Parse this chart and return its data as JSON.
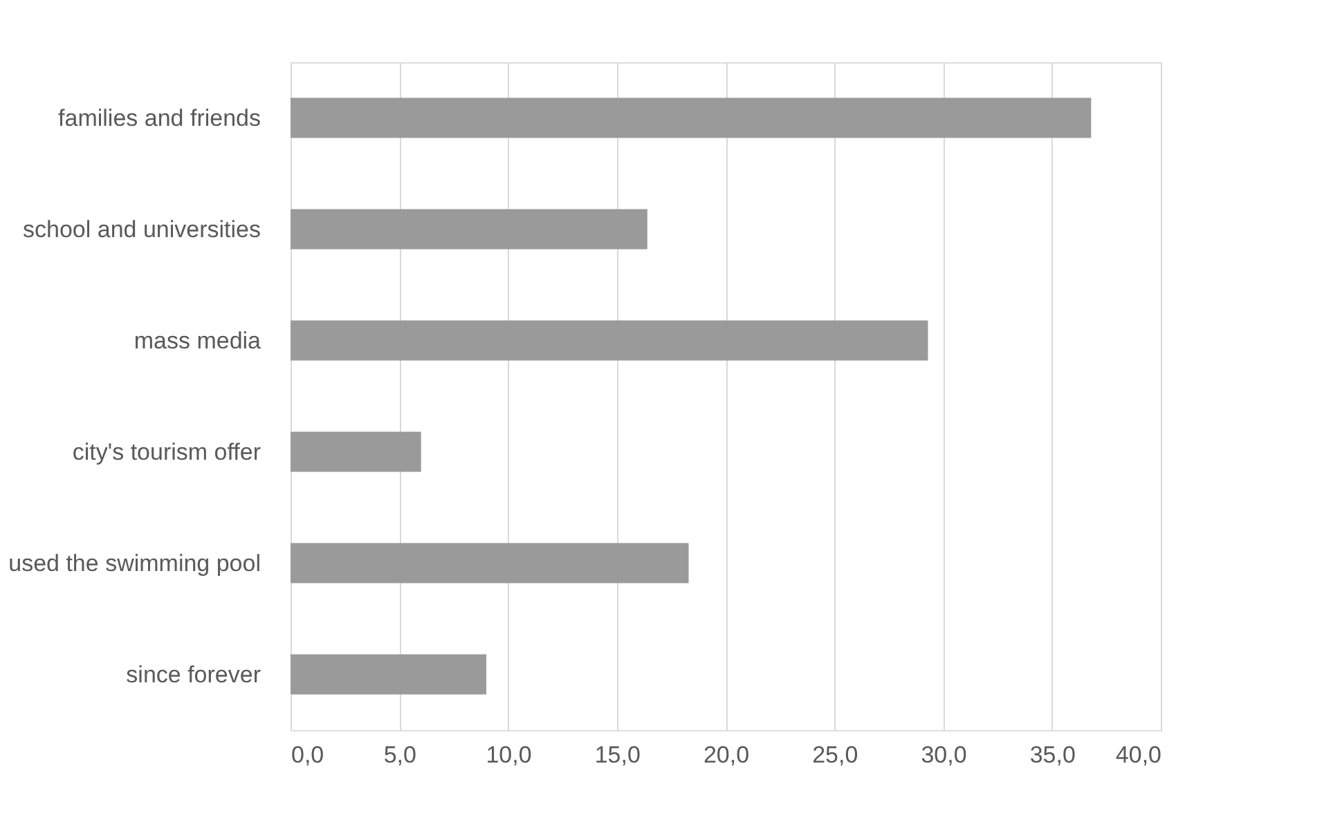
{
  "chart_data": {
    "type": "bar",
    "orientation": "horizontal",
    "categories": [
      "families and friends",
      "school and universities",
      "mass media",
      "city's tourism offer",
      "used the swimming pool",
      "since forever"
    ],
    "values": [
      36.8,
      16.4,
      29.3,
      6.0,
      18.3,
      9.0
    ],
    "color": "#9a9a9a",
    "xlim": [
      0,
      40
    ],
    "xticks": [
      {
        "value": 0,
        "label": "0,0"
      },
      {
        "value": 5,
        "label": "5,0"
      },
      {
        "value": 10,
        "label": "10,0"
      },
      {
        "value": 15,
        "label": "15,0"
      },
      {
        "value": 20,
        "label": "20,0"
      },
      {
        "value": 25,
        "label": "25,0"
      },
      {
        "value": 30,
        "label": "30,0"
      },
      {
        "value": 35,
        "label": "35,0"
      },
      {
        "value": 40,
        "label": "40,0"
      }
    ],
    "grid": "x"
  }
}
